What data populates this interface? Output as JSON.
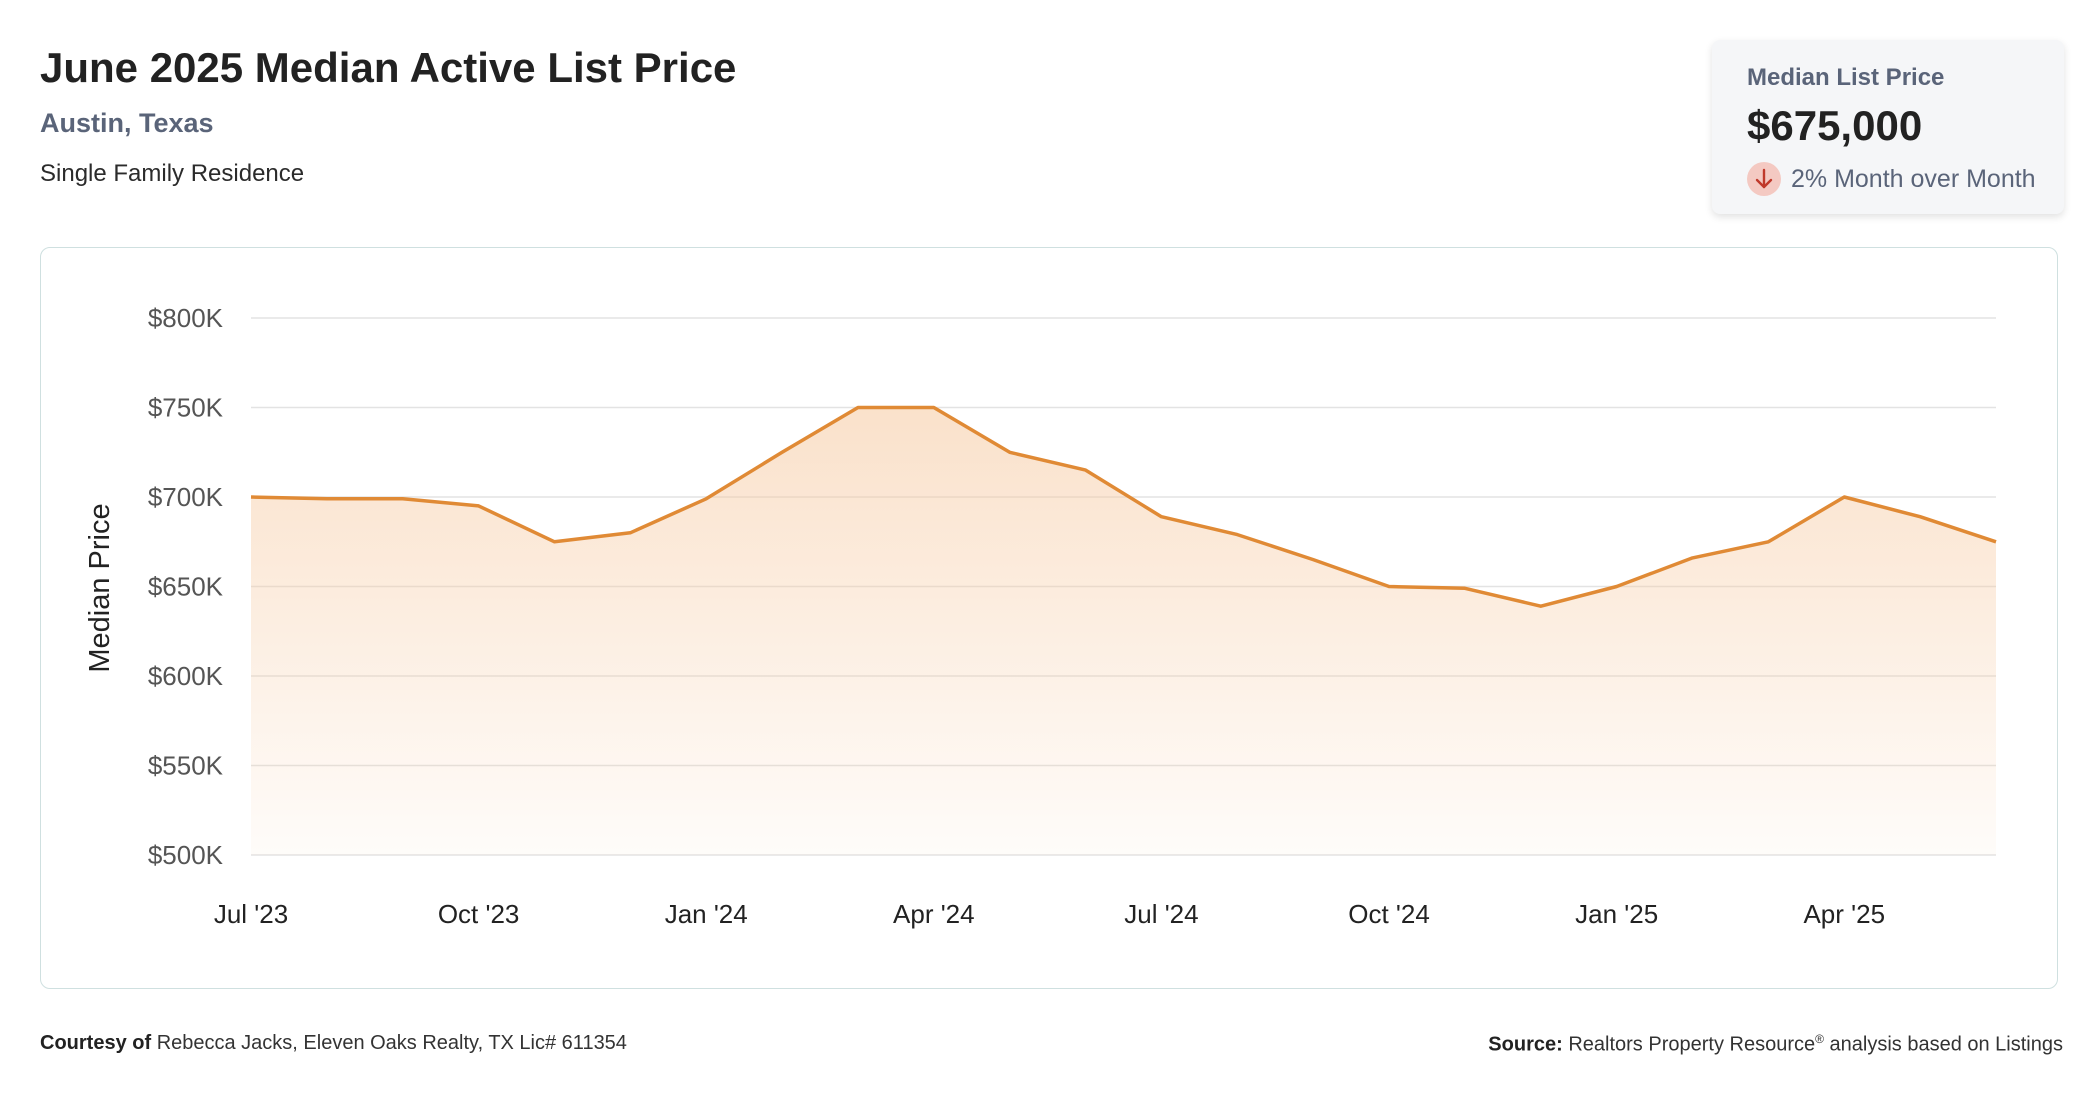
{
  "header": {
    "title": "June 2025 Median Active List Price",
    "location": "Austin, Texas",
    "property_type": "Single Family Residence"
  },
  "summary_card": {
    "label": "Median List Price",
    "value": "$675,000",
    "change": "2% Month over Month",
    "change_direction": "down",
    "icon": "arrow-down-icon"
  },
  "chart_data": {
    "type": "area",
    "ylabel": "Median Price",
    "xlabel": "",
    "ylim": [
      500000,
      800000
    ],
    "yticks": [
      500000,
      550000,
      600000,
      650000,
      700000,
      750000,
      800000
    ],
    "ytick_labels": [
      "$500K",
      "$550K",
      "$600K",
      "$650K",
      "$700K",
      "$750K",
      "$800K"
    ],
    "xtick_labels": [
      "Jul '23",
      "Oct '23",
      "Jan '24",
      "Apr '24",
      "Jul '24",
      "Oct '24",
      "Jan '25",
      "Apr '25"
    ],
    "xtick_index": [
      0,
      3,
      6,
      9,
      12,
      15,
      18,
      21
    ],
    "x": [
      "Jul '23",
      "Aug '23",
      "Sep '23",
      "Oct '23",
      "Nov '23",
      "Dec '23",
      "Jan '24",
      "Feb '24",
      "Mar '24",
      "Apr '24",
      "May '24",
      "Jun '24",
      "Jul '24",
      "Aug '24",
      "Sep '24",
      "Oct '24",
      "Nov '24",
      "Dec '24",
      "Jan '25",
      "Feb '25",
      "Mar '25",
      "Apr '25",
      "May '25",
      "Jun '25"
    ],
    "series": [
      {
        "values": [
          700000,
          699000,
          699000,
          695000,
          675000,
          680000,
          699000,
          725000,
          750000,
          750000,
          725000,
          715000,
          689000,
          679000,
          665000,
          650000,
          649000,
          639000,
          650000,
          666000,
          675000,
          700000,
          689000,
          675000
        ]
      }
    ],
    "line_color": "#e08a35",
    "fill_color": "#f6c9a0",
    "grid": true
  },
  "footer": {
    "courtesy_label": "Courtesy of",
    "courtesy_text": "Rebecca Jacks, Eleven Oaks Realty, TX Lic# 611354",
    "source_label": "Source:",
    "source_text": "Realtors Property Resource",
    "source_sup": "®",
    "source_suffix": "analysis based on Listings"
  }
}
